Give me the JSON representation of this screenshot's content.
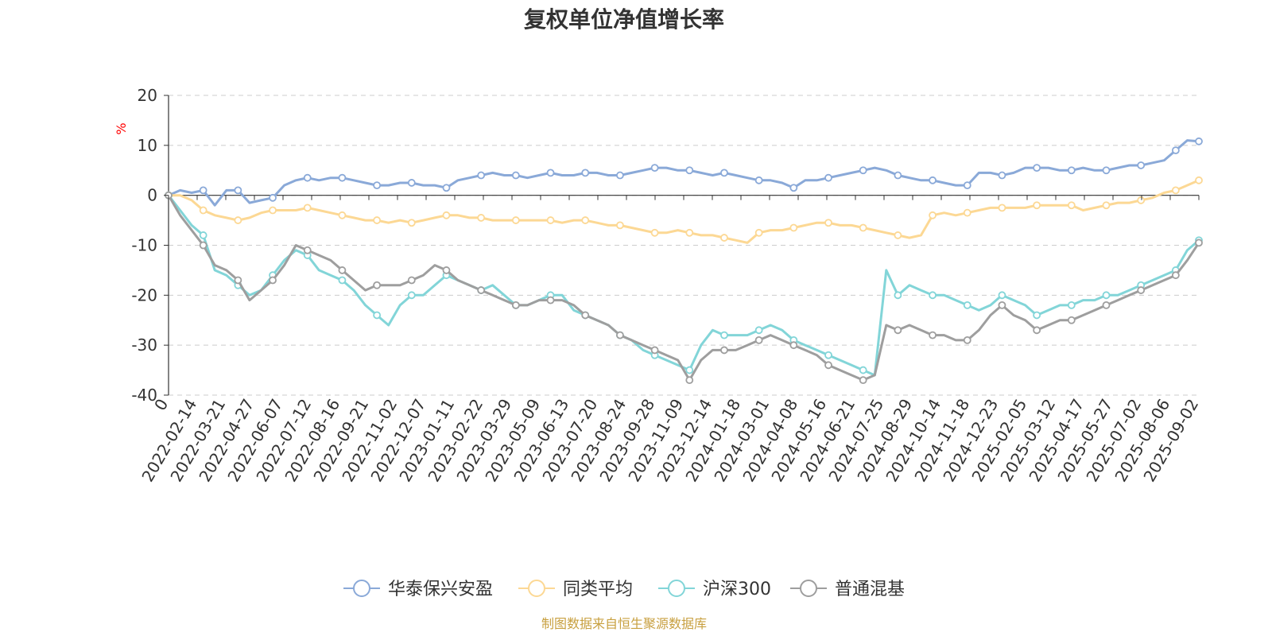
{
  "chart_data": {
    "type": "line",
    "title": "复权单位净值增长率",
    "ylabel": "%",
    "xlabel": "",
    "ylim": [
      -40,
      20
    ],
    "yticks": [
      20,
      10,
      0,
      -10,
      -20,
      -30,
      -40
    ],
    "grid": true,
    "legend_position": "bottom",
    "source": "制图数据来自恒生聚源数据库",
    "x_tick_labels": [
      "0",
      "2022-02-14",
      "2022-03-21",
      "2022-04-27",
      "2022-06-07",
      "2022-07-12",
      "2022-08-16",
      "2022-09-21",
      "2022-11-02",
      "2022-12-07",
      "2023-01-11",
      "2023-02-22",
      "2023-03-29",
      "2023-05-09",
      "2023-06-13",
      "2023-07-20",
      "2023-08-24",
      "2023-09-28",
      "2023-11-09",
      "2023-12-14",
      "2024-01-18",
      "2024-03-01",
      "2024-04-08",
      "2024-05-16",
      "2024-06-21",
      "2024-07-25",
      "2024-08-29",
      "2024-10-14",
      "2024-11-18",
      "2024-12-23",
      "2025-02-05",
      "2025-03-12",
      "2025-04-17",
      "2025-05-27",
      "2025-07-02",
      "2025-08-06",
      "2025-09-02"
    ],
    "series": [
      {
        "name": "华泰保兴安盈",
        "color": "#8aa9d8",
        "values": [
          0,
          1,
          0.5,
          1,
          -2,
          1,
          1,
          -1.5,
          -1,
          -0.5,
          2,
          3,
          3.5,
          3,
          3.5,
          3.5,
          3,
          2.5,
          2,
          2,
          2.5,
          2.5,
          2,
          2,
          1.5,
          3,
          3.5,
          4,
          4.5,
          4,
          4,
          3.5,
          4,
          4.5,
          4,
          4,
          4.5,
          4.5,
          4,
          4,
          4.5,
          5,
          5.5,
          5.5,
          5,
          5,
          4.5,
          4,
          4.5,
          4,
          3.5,
          3,
          3,
          2.5,
          1.5,
          3,
          3,
          3.5,
          4,
          4.5,
          5,
          5.5,
          5,
          4,
          3.5,
          3,
          3,
          2.5,
          2,
          2,
          4.5,
          4.5,
          4,
          4.5,
          5.5,
          5.5,
          5.5,
          5,
          5,
          5.5,
          5,
          5,
          5.5,
          6,
          6,
          6.5,
          7,
          9,
          11,
          10.8
        ]
      },
      {
        "name": "同类平均",
        "color": "#fcd894",
        "values": [
          0,
          0,
          -1,
          -3,
          -4,
          -4.5,
          -5,
          -4.5,
          -3.5,
          -3,
          -3,
          -3,
          -2.5,
          -3,
          -3.5,
          -4,
          -4.5,
          -5,
          -5,
          -5.5,
          -5,
          -5.5,
          -5,
          -4.5,
          -4,
          -4,
          -4.5,
          -4.5,
          -5,
          -5,
          -5,
          -5,
          -5,
          -5,
          -5.5,
          -5,
          -5,
          -5.5,
          -6,
          -6,
          -6.5,
          -7,
          -7.5,
          -7.5,
          -7,
          -7.5,
          -8,
          -8,
          -8.5,
          -9,
          -9.5,
          -7.5,
          -7,
          -7,
          -6.5,
          -6,
          -5.5,
          -5.5,
          -6,
          -6,
          -6.5,
          -7,
          -7.5,
          -8,
          -8.5,
          -8,
          -4,
          -3.5,
          -4,
          -3.5,
          -3,
          -2.5,
          -2.5,
          -2.5,
          -2.5,
          -2,
          -2,
          -2,
          -2,
          -3,
          -2.5,
          -2,
          -1.5,
          -1.5,
          -1,
          -0.5,
          0.5,
          1,
          2,
          3
        ]
      },
      {
        "name": "沪深300",
        "color": "#82d5d8",
        "values": [
          0,
          -3,
          -6,
          -8,
          -15,
          -16,
          -18,
          -20,
          -19,
          -16,
          -13,
          -11,
          -12,
          -15,
          -16,
          -17,
          -19,
          -22,
          -24,
          -26,
          -22,
          -20,
          -20,
          -18,
          -16,
          -17,
          -18,
          -19,
          -18,
          -20,
          -22,
          -22,
          -21,
          -20,
          -20,
          -23,
          -24,
          -25,
          -26,
          -28,
          -29,
          -31,
          -32,
          -33,
          -34,
          -35,
          -30,
          -27,
          -28,
          -28,
          -28,
          -27,
          -26,
          -27,
          -29,
          -30,
          -31,
          -32,
          -33,
          -34,
          -35,
          -36,
          -15,
          -20,
          -18,
          -19,
          -20,
          -20,
          -21,
          -22,
          -23,
          -22,
          -20,
          -21,
          -22,
          -24,
          -23,
          -22,
          -22,
          -21,
          -21,
          -20,
          -20,
          -19,
          -18,
          -17,
          -16,
          -15,
          -11,
          -9
        ]
      },
      {
        "name": "普通混基",
        "color": "#9e9e9e",
        "values": [
          0,
          -4,
          -7,
          -10,
          -14,
          -15,
          -17,
          -21,
          -19,
          -17,
          -14,
          -10,
          -11,
          -12,
          -13,
          -15,
          -17,
          -19,
          -18,
          -18,
          -18,
          -17,
          -16,
          -14,
          -15,
          -17,
          -18,
          -19,
          -20,
          -21,
          -22,
          -22,
          -21,
          -21,
          -21,
          -22,
          -24,
          -25,
          -26,
          -28,
          -29,
          -30,
          -31,
          -32,
          -33,
          -37,
          -33,
          -31,
          -31,
          -31,
          -30,
          -29,
          -28,
          -29,
          -30,
          -31,
          -32,
          -34,
          -35,
          -36,
          -37,
          -36,
          -26,
          -27,
          -26,
          -27,
          -28,
          -28,
          -29,
          -29,
          -27,
          -24,
          -22,
          -24,
          -25,
          -27,
          -26,
          -25,
          -25,
          -24,
          -23,
          -22,
          -21,
          -20,
          -19,
          -18,
          -17,
          -16,
          -13,
          -9.5
        ]
      }
    ]
  }
}
